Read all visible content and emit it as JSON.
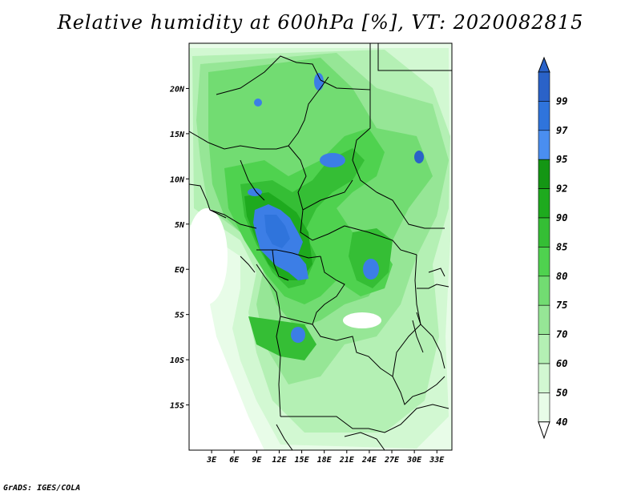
{
  "title": "Relative humidity at 600hPa [%], VT: 2020082815",
  "credit": "GrADS: IGES/COLA",
  "map": {
    "lon_range": [
      0,
      35
    ],
    "lat_range": [
      -20,
      25
    ],
    "lat_ticks": [
      {
        "value": 20,
        "label": "20N"
      },
      {
        "value": 15,
        "label": "15N"
      },
      {
        "value": 10,
        "label": "10N"
      },
      {
        "value": 5,
        "label": "5N"
      },
      {
        "value": 0,
        "label": "EQ"
      },
      {
        "value": -5,
        "label": "5S"
      },
      {
        "value": -10,
        "label": "10S"
      },
      {
        "value": -15,
        "label": "15S"
      }
    ],
    "lon_ticks": [
      {
        "value": 3,
        "label": "3E"
      },
      {
        "value": 6,
        "label": "6E"
      },
      {
        "value": 9,
        "label": "9E"
      },
      {
        "value": 12,
        "label": "12E"
      },
      {
        "value": 15,
        "label": "15E"
      },
      {
        "value": 18,
        "label": "18E"
      },
      {
        "value": 21,
        "label": "21E"
      },
      {
        "value": 24,
        "label": "24E"
      },
      {
        "value": 27,
        "label": "27E"
      },
      {
        "value": 30,
        "label": "30E"
      },
      {
        "value": 33,
        "label": "33E"
      }
    ]
  },
  "colorbar": {
    "levels": [
      {
        "label": "99",
        "color": "#2a62c8"
      },
      {
        "label": "97",
        "color": "#2f74dc"
      },
      {
        "label": "95",
        "color": "#4a8ef0"
      },
      {
        "label": "92",
        "color": "#149614"
      },
      {
        "label": "90",
        "color": "#1eaa1e"
      },
      {
        "label": "85",
        "color": "#35be35"
      },
      {
        "label": "80",
        "color": "#4fd24f"
      },
      {
        "label": "75",
        "color": "#72dc72"
      },
      {
        "label": "70",
        "color": "#96e696"
      },
      {
        "label": "60",
        "color": "#b4f0b4"
      },
      {
        "label": "50",
        "color": "#d2f8d2"
      },
      {
        "label": "40",
        "color": "#e8fce8"
      }
    ],
    "top_color": "#2a62c8",
    "bottom_color": "#ffffff"
  },
  "colors": {
    "outline": "#000000",
    "humid_blue": "#3c7ee6",
    "deep_blue": "#2a62c8"
  }
}
